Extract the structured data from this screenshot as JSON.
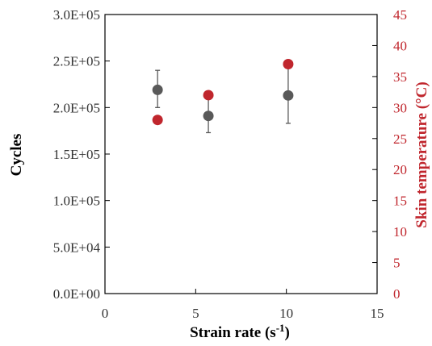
{
  "chart_data": {
    "type": "scatter",
    "title": "",
    "xlabel": "Strain rate (s",
    "xlabel_sup": "-1",
    "xlabel_suffix": ")",
    "ylabel_left": "Cycles",
    "ylabel_right": "Skin temperature (°C)",
    "xlim": [
      0,
      15
    ],
    "ylim_left": [
      0,
      300000
    ],
    "ylim_right": [
      0,
      45
    ],
    "x_ticks": [
      "0",
      "5",
      "10",
      "15"
    ],
    "x_tick_values": [
      0,
      5,
      10,
      15
    ],
    "y_left_ticks": [
      "0.0E+00",
      "5.0E+04",
      "1.0E+05",
      "1.5E+05",
      "2.0E+05",
      "2.5E+05",
      "3.0E+05"
    ],
    "y_left_tick_values": [
      0,
      50000,
      100000,
      150000,
      200000,
      250000,
      300000
    ],
    "y_right_ticks": [
      "0",
      "5",
      "10",
      "15",
      "20",
      "25",
      "30",
      "35",
      "40",
      "45"
    ],
    "y_right_tick_values": [
      0,
      5,
      10,
      15,
      20,
      25,
      30,
      35,
      40,
      45
    ],
    "grid": false,
    "legend": "none",
    "series": [
      {
        "axis": "left",
        "color": "#595959",
        "points": [
          {
            "x": 2.9,
            "y": 219000,
            "err_low": 200000,
            "err_high": 240000
          },
          {
            "x": 5.7,
            "y": 191000,
            "err_low": 173000,
            "err_high": 209000
          },
          {
            "x": 10.1,
            "y": 213000,
            "err_low": 183000,
            "err_high": 243000
          }
        ]
      },
      {
        "axis": "right",
        "color": "#c0262d",
        "points": [
          {
            "x": 2.9,
            "y": 28
          },
          {
            "x": 5.7,
            "y": 32
          },
          {
            "x": 10.1,
            "y": 37
          }
        ]
      }
    ],
    "colors": {
      "left_axis_text": "#333333",
      "right_axis_text": "#c0262d",
      "axis_line": "#000000",
      "error_bar": "#595959"
    }
  }
}
